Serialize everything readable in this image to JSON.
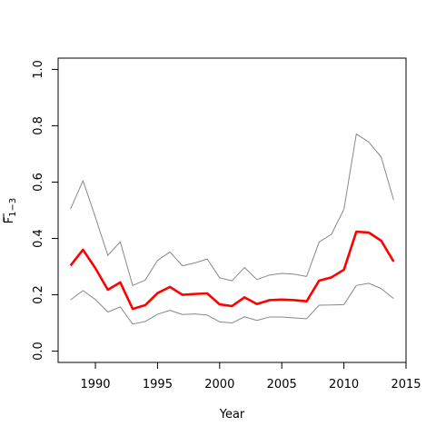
{
  "chart_data": {
    "type": "line",
    "title": "",
    "xlabel": "Year",
    "ylabel_main": "F",
    "ylabel_sub": "1−3",
    "xlim": [
      1987.0,
      2015.0
    ],
    "ylim": [
      -0.04,
      1.04
    ],
    "x_ticks": [
      1990,
      1995,
      2000,
      2005,
      2010,
      2015
    ],
    "x_tick_labels": [
      "1990",
      "1995",
      "2000",
      "2005",
      "2010",
      "2015"
    ],
    "y_ticks": [
      0.0,
      0.2,
      0.4,
      0.6,
      0.8,
      1.0
    ],
    "y_tick_labels": [
      "0.0",
      "0.2",
      "0.4",
      "0.6",
      "0.8",
      "1.0"
    ],
    "grid": false,
    "x": [
      1988,
      1989,
      1990,
      1991,
      1992,
      1993,
      1994,
      1995,
      1996,
      1997,
      1998,
      1999,
      2000,
      2001,
      2002,
      2003,
      2004,
      2005,
      2006,
      2007,
      2008,
      2009,
      2010,
      2011,
      2012,
      2013,
      2014
    ],
    "series": [
      {
        "role": "upper-bound",
        "color": "#888888",
        "width": 1,
        "values": [
          0.505,
          0.605,
          0.475,
          0.34,
          0.388,
          0.233,
          0.252,
          0.322,
          0.352,
          0.303,
          0.313,
          0.327,
          0.26,
          0.25,
          0.297,
          0.254,
          0.27,
          0.276,
          0.273,
          0.265,
          0.387,
          0.415,
          0.503,
          0.771,
          0.742,
          0.689,
          0.537
        ]
      },
      {
        "role": "estimate",
        "color": "#ff0000",
        "width": 2.6,
        "values": [
          0.304,
          0.36,
          0.294,
          0.218,
          0.244,
          0.15,
          0.163,
          0.206,
          0.228,
          0.2,
          0.203,
          0.205,
          0.166,
          0.16,
          0.191,
          0.167,
          0.181,
          0.183,
          0.181,
          0.177,
          0.25,
          0.262,
          0.289,
          0.424,
          0.421,
          0.392,
          0.318
        ]
      },
      {
        "role": "lower-bound",
        "color": "#888888",
        "width": 1,
        "values": [
          0.182,
          0.215,
          0.183,
          0.139,
          0.157,
          0.096,
          0.105,
          0.131,
          0.145,
          0.13,
          0.132,
          0.128,
          0.104,
          0.1,
          0.122,
          0.109,
          0.121,
          0.121,
          0.118,
          0.115,
          0.163,
          0.164,
          0.165,
          0.233,
          0.241,
          0.222,
          0.187
        ]
      }
    ]
  }
}
